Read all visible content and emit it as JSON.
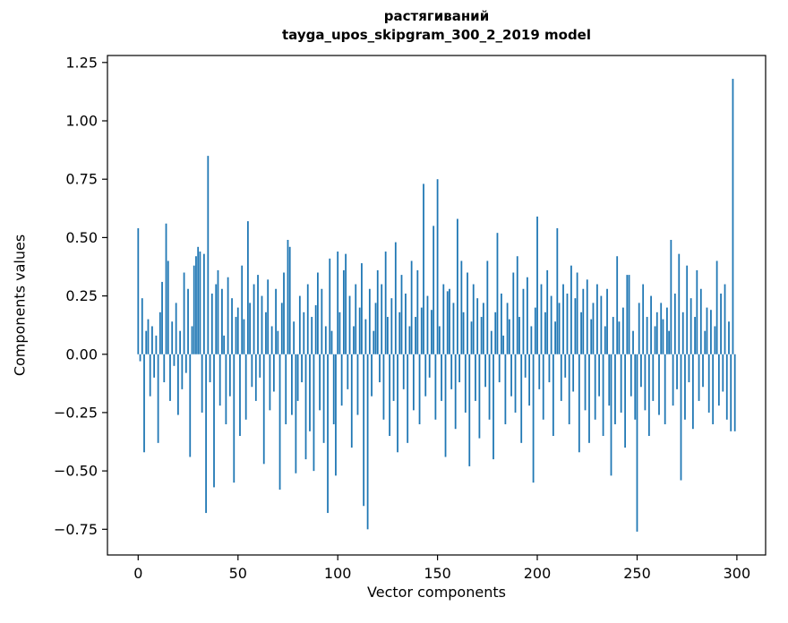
{
  "chart_data": {
    "type": "bar",
    "title_line1": "растягиваний",
    "title_line2": "tayga_upos_skipgram_300_2_2019 model",
    "xlabel": "Vector components",
    "ylabel": "Components values",
    "bar_color": "#1f77b4",
    "grid": false,
    "legend": null,
    "xlim": [
      -15.4,
      314.4
    ],
    "ylim": [
      -0.86,
      1.28
    ],
    "xtick_values": [
      0,
      50,
      100,
      150,
      200,
      250,
      300
    ],
    "xtick_labels": [
      "0",
      "50",
      "100",
      "150",
      "200",
      "250",
      "300"
    ],
    "ytick_values": [
      -0.75,
      -0.5,
      -0.25,
      0,
      0.25,
      0.5,
      0.75,
      1.0,
      1.25
    ],
    "ytick_labels": [
      "−0.75",
      "−0.50",
      "−0.25",
      "0.00",
      "0.25",
      "0.50",
      "0.75",
      "1.00",
      "1.25"
    ],
    "values": [
      0.54,
      -0.03,
      0.24,
      -0.42,
      0.1,
      0.15,
      -0.18,
      0.12,
      -0.1,
      0.08,
      -0.38,
      0.18,
      0.31,
      -0.12,
      0.56,
      0.4,
      -0.2,
      0.14,
      -0.05,
      0.22,
      -0.26,
      0.1,
      -0.15,
      0.35,
      -0.08,
      0.28,
      -0.44,
      0.12,
      0.38,
      0.42,
      0.46,
      0.44,
      -0.25,
      0.43,
      -0.68,
      0.85,
      -0.12,
      0.26,
      -0.57,
      0.3,
      0.36,
      -0.22,
      0.28,
      0.08,
      -0.3,
      0.33,
      -0.18,
      0.24,
      -0.55,
      0.16,
      0.2,
      -0.35,
      0.38,
      0.15,
      -0.28,
      0.57,
      0.22,
      -0.14,
      0.3,
      -0.2,
      0.34,
      -0.1,
      0.25,
      -0.47,
      0.18,
      0.32,
      -0.24,
      0.12,
      -0.16,
      0.28,
      0.1,
      -0.58,
      0.22,
      0.35,
      -0.3,
      0.49,
      0.46,
      -0.26,
      0.14,
      -0.51,
      -0.2,
      0.25,
      -0.12,
      0.18,
      -0.45,
      0.3,
      -0.33,
      0.16,
      -0.5,
      0.21,
      0.35,
      -0.24,
      0.28,
      -0.38,
      0.12,
      -0.68,
      0.41,
      0.1,
      -0.3,
      -0.52,
      0.44,
      0.18,
      -0.22,
      0.36,
      0.43,
      -0.15,
      0.25,
      -0.4,
      0.12,
      0.3,
      -0.26,
      0.2,
      0.39,
      -0.65,
      0.15,
      -0.75,
      0.28,
      -0.18,
      0.1,
      0.22,
      0.36,
      -0.12,
      0.3,
      -0.28,
      0.44,
      0.16,
      -0.35,
      0.24,
      -0.2,
      0.48,
      -0.42,
      0.18,
      0.34,
      -0.15,
      0.26,
      -0.38,
      0.12,
      0.4,
      -0.24,
      0.16,
      0.36,
      -0.3,
      0.2,
      0.73,
      -0.18,
      0.25,
      -0.1,
      0.19,
      0.55,
      -0.28,
      0.75,
      0.12,
      -0.2,
      0.3,
      -0.44,
      0.27,
      0.28,
      -0.15,
      0.22,
      -0.32,
      0.58,
      -0.12,
      0.4,
      0.18,
      -0.25,
      0.35,
      -0.48,
      0.14,
      0.3,
      -0.2,
      0.24,
      -0.36,
      0.16,
      0.22,
      -0.14,
      0.4,
      -0.28,
      0.1,
      -0.45,
      0.18,
      0.52,
      -0.12,
      0.26,
      0.08,
      -0.3,
      0.22,
      0.15,
      -0.18,
      0.35,
      -0.25,
      0.42,
      0.16,
      -0.38,
      0.28,
      -0.1,
      0.33,
      -0.22,
      0.12,
      -0.55,
      0.2,
      0.59,
      -0.15,
      0.3,
      -0.28,
      0.18,
      0.36,
      -0.12,
      0.25,
      -0.35,
      0.14,
      0.54,
      0.22,
      -0.2,
      0.3,
      -0.1,
      0.26,
      -0.3,
      0.38,
      -0.16,
      0.24,
      0.35,
      -0.42,
      0.18,
      0.28,
      -0.24,
      0.32,
      -0.38,
      0.15,
      0.22,
      -0.28,
      0.3,
      -0.18,
      0.25,
      -0.35,
      0.12,
      0.28,
      -0.22,
      -0.52,
      0.16,
      -0.3,
      0.42,
      0.14,
      -0.25,
      0.2,
      -0.4,
      0.34,
      0.34,
      -0.18,
      0.1,
      -0.28,
      -0.76,
      0.22,
      -0.14,
      0.3,
      -0.24,
      0.16,
      -0.35,
      0.25,
      -0.2,
      0.12,
      0.18,
      -0.26,
      0.22,
      0.15,
      -0.3,
      0.2,
      0.1,
      0.49,
      -0.22,
      0.26,
      -0.15,
      0.43,
      -0.54,
      0.18,
      -0.28,
      0.38,
      -0.12,
      0.24,
      -0.32,
      0.16,
      0.36,
      -0.2,
      0.28,
      -0.14,
      0.1,
      0.2,
      -0.25,
      0.19,
      -0.3,
      0.12,
      0.4,
      -0.22,
      0.26,
      -0.16,
      0.3,
      -0.28,
      0.14,
      -0.33,
      1.18,
      -0.33
    ]
  }
}
